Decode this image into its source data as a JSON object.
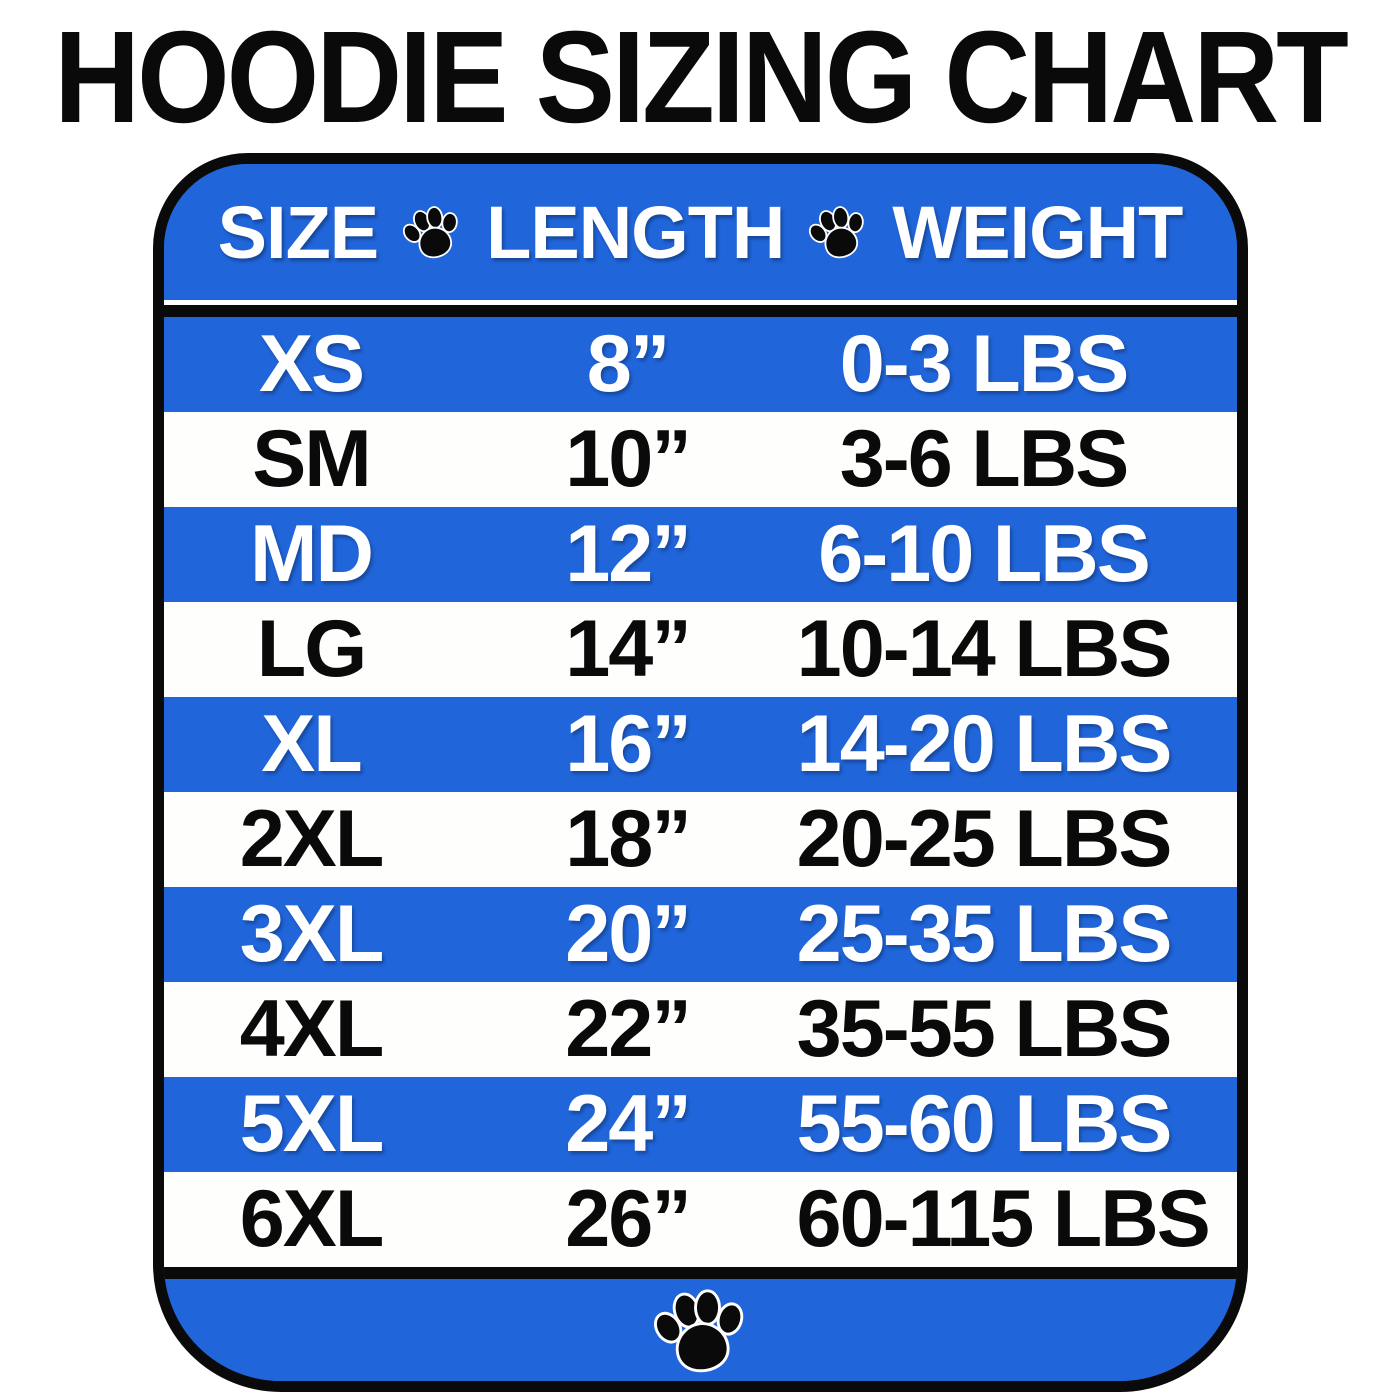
{
  "title": "HOODIE SIZING CHART",
  "colors": {
    "row_blue": "#2065da",
    "row_white": "#fefefc",
    "border_black": "#0a0a0a",
    "header_text": "#ffffff"
  },
  "icons": {
    "header_separator": "paw-icon",
    "footer": "paw-icon"
  },
  "chart_data": {
    "type": "table",
    "title": "HOODIE SIZING CHART",
    "columns": [
      "SIZE",
      "LENGTH",
      "WEIGHT"
    ],
    "rows": [
      [
        "XS",
        "8”",
        "0-3 LBS"
      ],
      [
        "SM",
        "10”",
        "3-6 LBS"
      ],
      [
        "MD",
        "12”",
        "6-10 LBS"
      ],
      [
        "LG",
        "14”",
        "10-14 LBS"
      ],
      [
        "XL",
        "16”",
        "14-20 LBS"
      ],
      [
        "2XL",
        "18”",
        "20-25 LBS"
      ],
      [
        "3XL",
        "20”",
        "25-35 LBS"
      ],
      [
        "4XL",
        "22”",
        "35-55 LBS"
      ],
      [
        "5XL",
        "24”",
        "55-60 LBS"
      ],
      [
        "6XL",
        "26”",
        "60-115 LBS"
      ]
    ],
    "layout_hints": {
      "row_striping": "alternating blue/white starting with blue",
      "header_background": "blue",
      "footer": "blue band with centered paw icon"
    }
  }
}
